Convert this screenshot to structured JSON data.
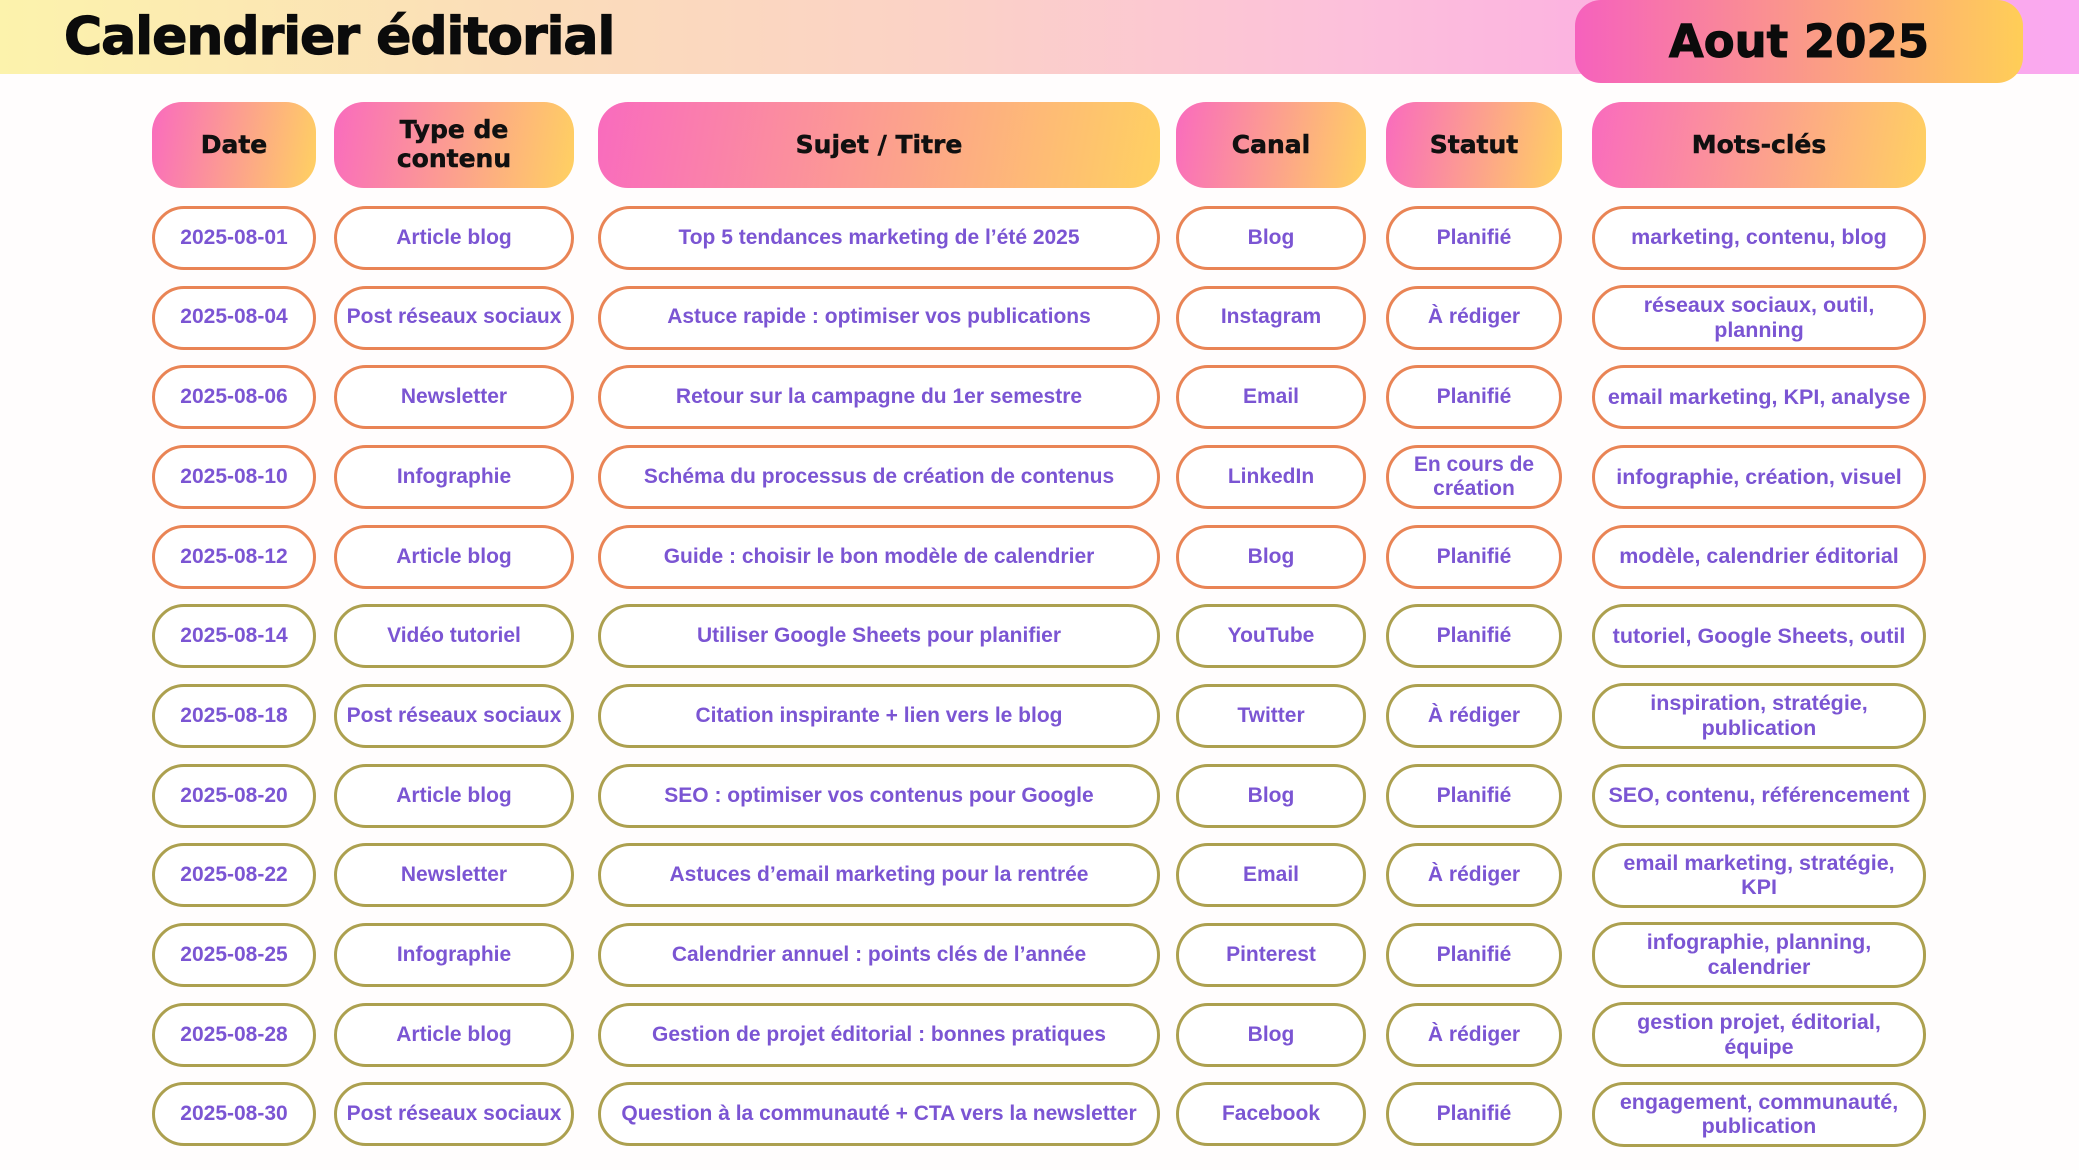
{
  "banner": {
    "title": "Calendrier éditorial",
    "month_badge": "Aout 2025"
  },
  "columns": [
    "Date",
    "Type de contenu",
    "Sujet / Titre",
    "Canal",
    "Statut",
    "Mots-clés"
  ],
  "rows": [
    {
      "date": "2025-08-01",
      "type": "Article blog",
      "sujet": "Top 5 tendances marketing de l’été 2025",
      "canal": "Blog",
      "statut": "Planifié",
      "mots": "marketing, contenu, blog",
      "accent": "orange"
    },
    {
      "date": "2025-08-04",
      "type": "Post réseaux sociaux",
      "sujet": "Astuce rapide : optimiser vos publications",
      "canal": "Instagram",
      "statut": "À rédiger",
      "mots": "réseaux sociaux, outil, planning",
      "accent": "orange"
    },
    {
      "date": "2025-08-06",
      "type": "Newsletter",
      "sujet": "Retour sur la campagne du 1er semestre",
      "canal": "Email",
      "statut": "Planifié",
      "mots": "email marketing, KPI, analyse",
      "accent": "orange"
    },
    {
      "date": "2025-08-10",
      "type": "Infographie",
      "sujet": "Schéma du processus de création de contenus",
      "canal": "LinkedIn",
      "statut": "En cours de création",
      "mots": "infographie, création, visuel",
      "accent": "orange"
    },
    {
      "date": "2025-08-12",
      "type": "Article blog",
      "sujet": "Guide : choisir le bon modèle de calendrier",
      "canal": "Blog",
      "statut": "Planifié",
      "mots": "modèle, calendrier éditorial",
      "accent": "orange"
    },
    {
      "date": "2025-08-14",
      "type": "Vidéo tutoriel",
      "sujet": "Utiliser Google Sheets pour planifier",
      "canal": "YouTube",
      "statut": "Planifié",
      "mots": "tutoriel, Google Sheets, outil",
      "accent": "olive"
    },
    {
      "date": "2025-08-18",
      "type": "Post réseaux sociaux",
      "sujet": "Citation inspirante + lien vers le blog",
      "canal": "Twitter",
      "statut": "À rédiger",
      "mots": "inspiration, stratégie, publication",
      "accent": "olive"
    },
    {
      "date": "2025-08-20",
      "type": "Article blog",
      "sujet": "SEO : optimiser vos contenus pour Google",
      "canal": "Blog",
      "statut": "Planifié",
      "mots": "SEO, contenu, référencement",
      "accent": "olive"
    },
    {
      "date": "2025-08-22",
      "type": "Newsletter",
      "sujet": "Astuces d’email marketing pour la rentrée",
      "canal": "Email",
      "statut": "À rédiger",
      "mots": "email marketing, stratégie, KPI",
      "accent": "olive"
    },
    {
      "date": "2025-08-25",
      "type": "Infographie",
      "sujet": "Calendrier annuel : points clés de l’année",
      "canal": "Pinterest",
      "statut": "Planifié",
      "mots": "infographie, planning, calendrier",
      "accent": "olive"
    },
    {
      "date": "2025-08-28",
      "type": "Article blog",
      "sujet": "Gestion de projet éditorial : bonnes pratiques",
      "canal": "Blog",
      "statut": "À rédiger",
      "mots": "gestion projet, éditorial, équipe",
      "accent": "olive"
    },
    {
      "date": "2025-08-30",
      "type": "Post réseaux sociaux",
      "sujet": "Question à la communauté + CTA vers la newsletter",
      "canal": "Facebook",
      "statut": "Planifié",
      "mots": "engagement, communauté, publication",
      "accent": "olive"
    }
  ],
  "colors": {
    "accent_orange": "#E98455",
    "accent_olive": "#ACA04F",
    "text_purple": "#7B55D3",
    "header_pink": "#F96BBE",
    "header_yellow": "#FFD161"
  }
}
